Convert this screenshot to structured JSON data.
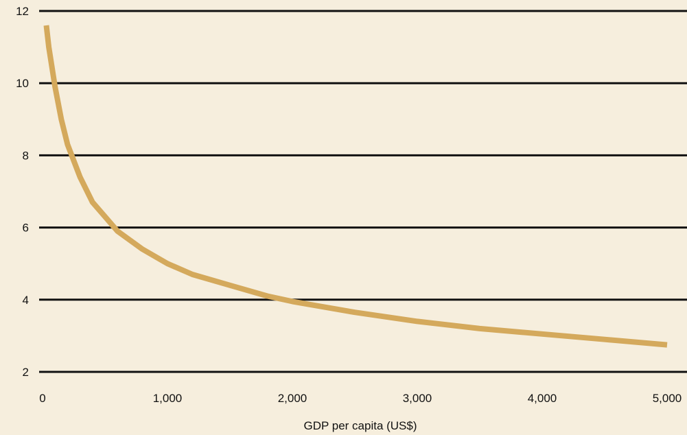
{
  "chart_data": {
    "type": "line",
    "title": "",
    "xlabel": "GDP per capita (US$)",
    "ylabel": "",
    "xlim": [
      0,
      5000
    ],
    "ylim": [
      2,
      12
    ],
    "x_ticks": [
      0,
      1000,
      2000,
      3000,
      4000,
      5000
    ],
    "x_tick_labels": [
      "0",
      "1,000",
      "2,000",
      "3,000",
      "4,000",
      "5,000"
    ],
    "y_ticks": [
      2,
      4,
      6,
      8,
      10,
      12
    ],
    "y_tick_labels": [
      "2",
      "4",
      "6",
      "8",
      "10",
      "12"
    ],
    "grid": "horizontal",
    "legend": "none",
    "series": [
      {
        "color": "#d4a95c",
        "x": [
          30,
          50,
          100,
          150,
          200,
          300,
          400,
          500,
          600,
          800,
          1000,
          1200,
          1500,
          1800,
          2000,
          2500,
          3000,
          3500,
          4000,
          4500,
          5000
        ],
        "y": [
          11.6,
          11.0,
          9.9,
          9.0,
          8.3,
          7.4,
          6.7,
          6.3,
          5.9,
          5.4,
          5.0,
          4.7,
          4.4,
          4.1,
          3.95,
          3.65,
          3.4,
          3.2,
          3.05,
          2.9,
          2.75
        ]
      }
    ]
  }
}
